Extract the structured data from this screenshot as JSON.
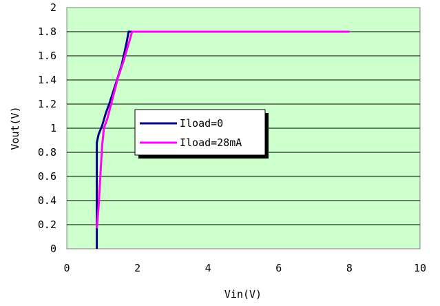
{
  "chart_data": {
    "type": "line",
    "title": "",
    "xlabel": "Vin(V)",
    "ylabel": "Vout(V)",
    "xlim": [
      0,
      10
    ],
    "ylim": [
      0,
      2
    ],
    "xticks": [
      0,
      2,
      4,
      6,
      8,
      10
    ],
    "xtick_labels": [
      "0",
      "2",
      "4",
      "6",
      "8",
      "10"
    ],
    "yticks": [
      0,
      0.2,
      0.4,
      0.6,
      0.8,
      1,
      1.2,
      1.4,
      1.6,
      1.8,
      2
    ],
    "ytick_labels": [
      "0",
      "0.2",
      "0.4",
      "0.6",
      "0.8",
      "1",
      "1.2",
      "1.4",
      "1.6",
      "1.8",
      "2"
    ],
    "grid": "horizontal",
    "legend_position": "center",
    "plot_background": "#ccffcc",
    "series": [
      {
        "name": "Iload=0",
        "color": "#000080",
        "x": [
          0.85,
          0.85,
          0.85,
          0.9,
          1.0,
          1.1,
          1.2,
          1.4,
          1.55,
          1.65,
          1.7,
          1.75,
          8.0
        ],
        "y": [
          0.0,
          0.5,
          0.88,
          0.95,
          1.02,
          1.12,
          1.2,
          1.38,
          1.52,
          1.65,
          1.72,
          1.8,
          1.8
        ]
      },
      {
        "name": "Iload=28mA",
        "color": "#ff00ff",
        "x": [
          0.85,
          0.9,
          0.95,
          1.0,
          1.05,
          1.15,
          1.3,
          1.45,
          1.6,
          1.75,
          1.85,
          8.0
        ],
        "y": [
          0.17,
          0.35,
          0.6,
          0.85,
          1.0,
          1.08,
          1.25,
          1.42,
          1.55,
          1.7,
          1.8,
          1.8
        ]
      }
    ]
  }
}
